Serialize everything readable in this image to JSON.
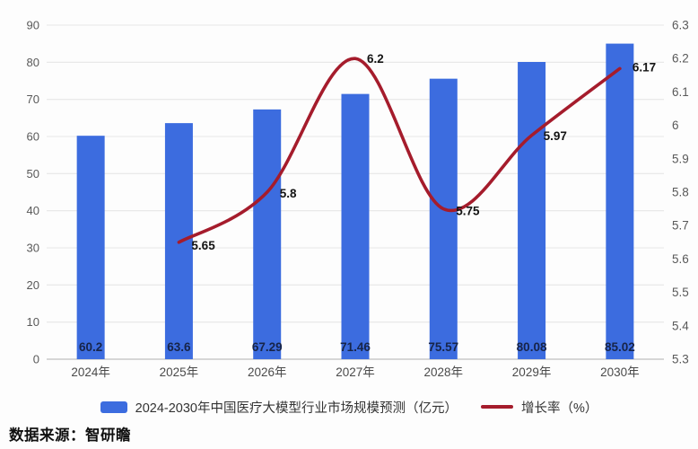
{
  "chart_data": {
    "type": "bar",
    "subtype": "bar-and-line-combo",
    "categories": [
      "2024年",
      "2025年",
      "2026年",
      "2027年",
      "2028年",
      "2029年",
      "2030年"
    ],
    "series": [
      {
        "name": "2024-2030年中国医疗大模型行业市场规模预测（亿元）",
        "type": "bar",
        "axis": "left",
        "values": [
          60.2,
          63.6,
          67.29,
          71.46,
          75.57,
          80.08,
          85.02
        ],
        "labels": [
          "60.2",
          "63.6",
          "67.29",
          "71.46",
          "75.57",
          "80.08",
          "85.02"
        ]
      },
      {
        "name": "增长率（%）",
        "type": "line",
        "axis": "right",
        "values": [
          null,
          5.65,
          5.8,
          6.2,
          5.75,
          5.97,
          6.17
        ],
        "labels": [
          "",
          "5.65",
          "5.8",
          "6.2",
          "5.75",
          "5.97",
          "6.17"
        ]
      }
    ],
    "left_axis": {
      "min": 0,
      "max": 90,
      "step": 10,
      "ticks": [
        "0",
        "10",
        "20",
        "30",
        "40",
        "50",
        "60",
        "70",
        "80",
        "90"
      ]
    },
    "right_axis": {
      "min": 5.3,
      "max": 6.3,
      "step": 0.1,
      "ticks": [
        "5.3",
        "5.4",
        "5.5",
        "5.6",
        "5.7",
        "5.8",
        "5.9",
        "6",
        "6.1",
        "6.2",
        "6.3"
      ]
    },
    "grid": true,
    "legend_position": "bottom",
    "title": ""
  },
  "colors": {
    "bar": "#3C6CDF",
    "line": "#A51C2C",
    "grid": "#e6e6e6",
    "axis_line": "#c9c9c9",
    "tick_text": "#595959",
    "category_text": "#4a4a4a",
    "bar_label_text": "#172448",
    "line_label_text": "#141414",
    "legend_text": "#333333",
    "background": "#fdfdfd"
  },
  "source": {
    "label": "数据来源：智研瞻"
  }
}
